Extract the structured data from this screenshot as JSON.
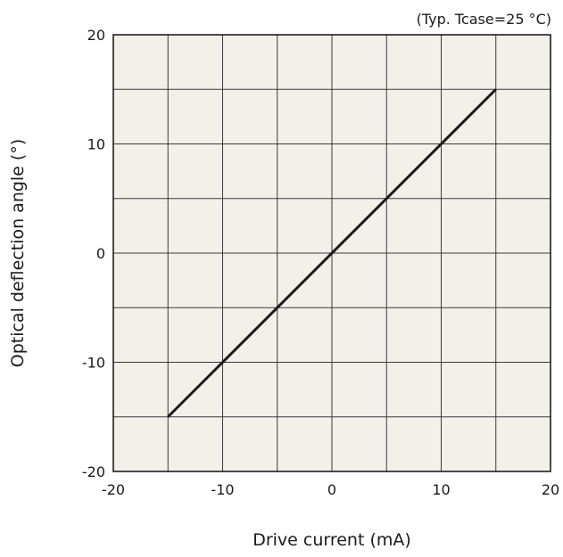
{
  "chart_data": {
    "type": "line",
    "annotation": "(Typ. Tcase=25 °C)",
    "xlabel": "Drive current (mA)",
    "ylabel": "Optical deflection angle (°)",
    "xlim": [
      -20,
      20
    ],
    "ylim": [
      -20,
      20
    ],
    "x_ticks": [
      -20,
      -10,
      0,
      10,
      20
    ],
    "y_ticks": [
      -20,
      -10,
      0,
      10,
      20
    ],
    "x_tick_labels": [
      "-20",
      "-10",
      "0",
      "10",
      "20"
    ],
    "y_tick_labels": [
      "-20",
      "-10",
      "0",
      "10",
      "20"
    ],
    "grid": true,
    "grid_step": 5,
    "series": [
      {
        "x": [
          -15,
          15
        ],
        "y": [
          -15,
          15
        ],
        "color": "#1a1a1a"
      }
    ],
    "colors": {
      "plot_background": "#f2f0e8",
      "grid": "#3a3a3a",
      "line": "#1a1a1a"
    }
  }
}
